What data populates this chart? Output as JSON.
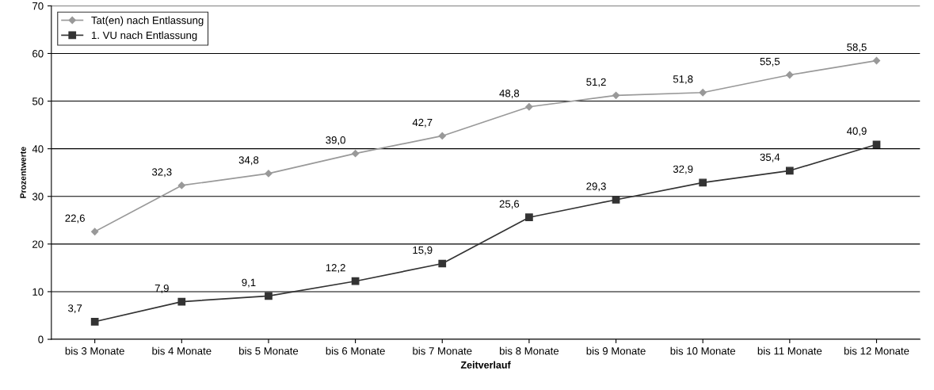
{
  "chart_data": {
    "type": "line",
    "xlabel": "Zeitverlauf",
    "ylabel": "Prozentwerte",
    "categories": [
      "bis 3 Monate",
      "bis 4 Monate",
      "bis 5 Monate",
      "bis 6 Monate",
      "bis 7 Monate",
      "bis 8 Monate",
      "bis 9 Monate",
      "bis 10 Monate",
      "bis 11 Monate",
      "bis 12 Monate"
    ],
    "series": [
      {
        "name": "Tat(en) nach Entlassung",
        "color": "#999999",
        "marker": "diamond",
        "values": [
          22.6,
          32.3,
          34.8,
          39.0,
          42.7,
          48.8,
          51.2,
          51.8,
          55.5,
          58.5
        ],
        "value_labels": [
          "22,6",
          "32,3",
          "34,8",
          "39,0",
          "42,7",
          "48,8",
          "51,2",
          "51,8",
          "55,5",
          "58,5"
        ]
      },
      {
        "name": "1. VU nach Entlassung",
        "color": "#333333",
        "marker": "square",
        "values": [
          3.7,
          7.9,
          9.1,
          12.2,
          15.9,
          25.6,
          29.3,
          32.9,
          35.4,
          40.9
        ],
        "value_labels": [
          "3,7",
          "7,9",
          "9,1",
          "12,2",
          "15,9",
          "25,6",
          "29,3",
          "32,9",
          "35,4",
          "40,9"
        ]
      }
    ],
    "ylim": [
      0,
      70
    ],
    "yticks": [
      0,
      10,
      20,
      30,
      40,
      50,
      60,
      70
    ],
    "grid": "y",
    "legend": "top left",
    "line_style": "solid"
  }
}
